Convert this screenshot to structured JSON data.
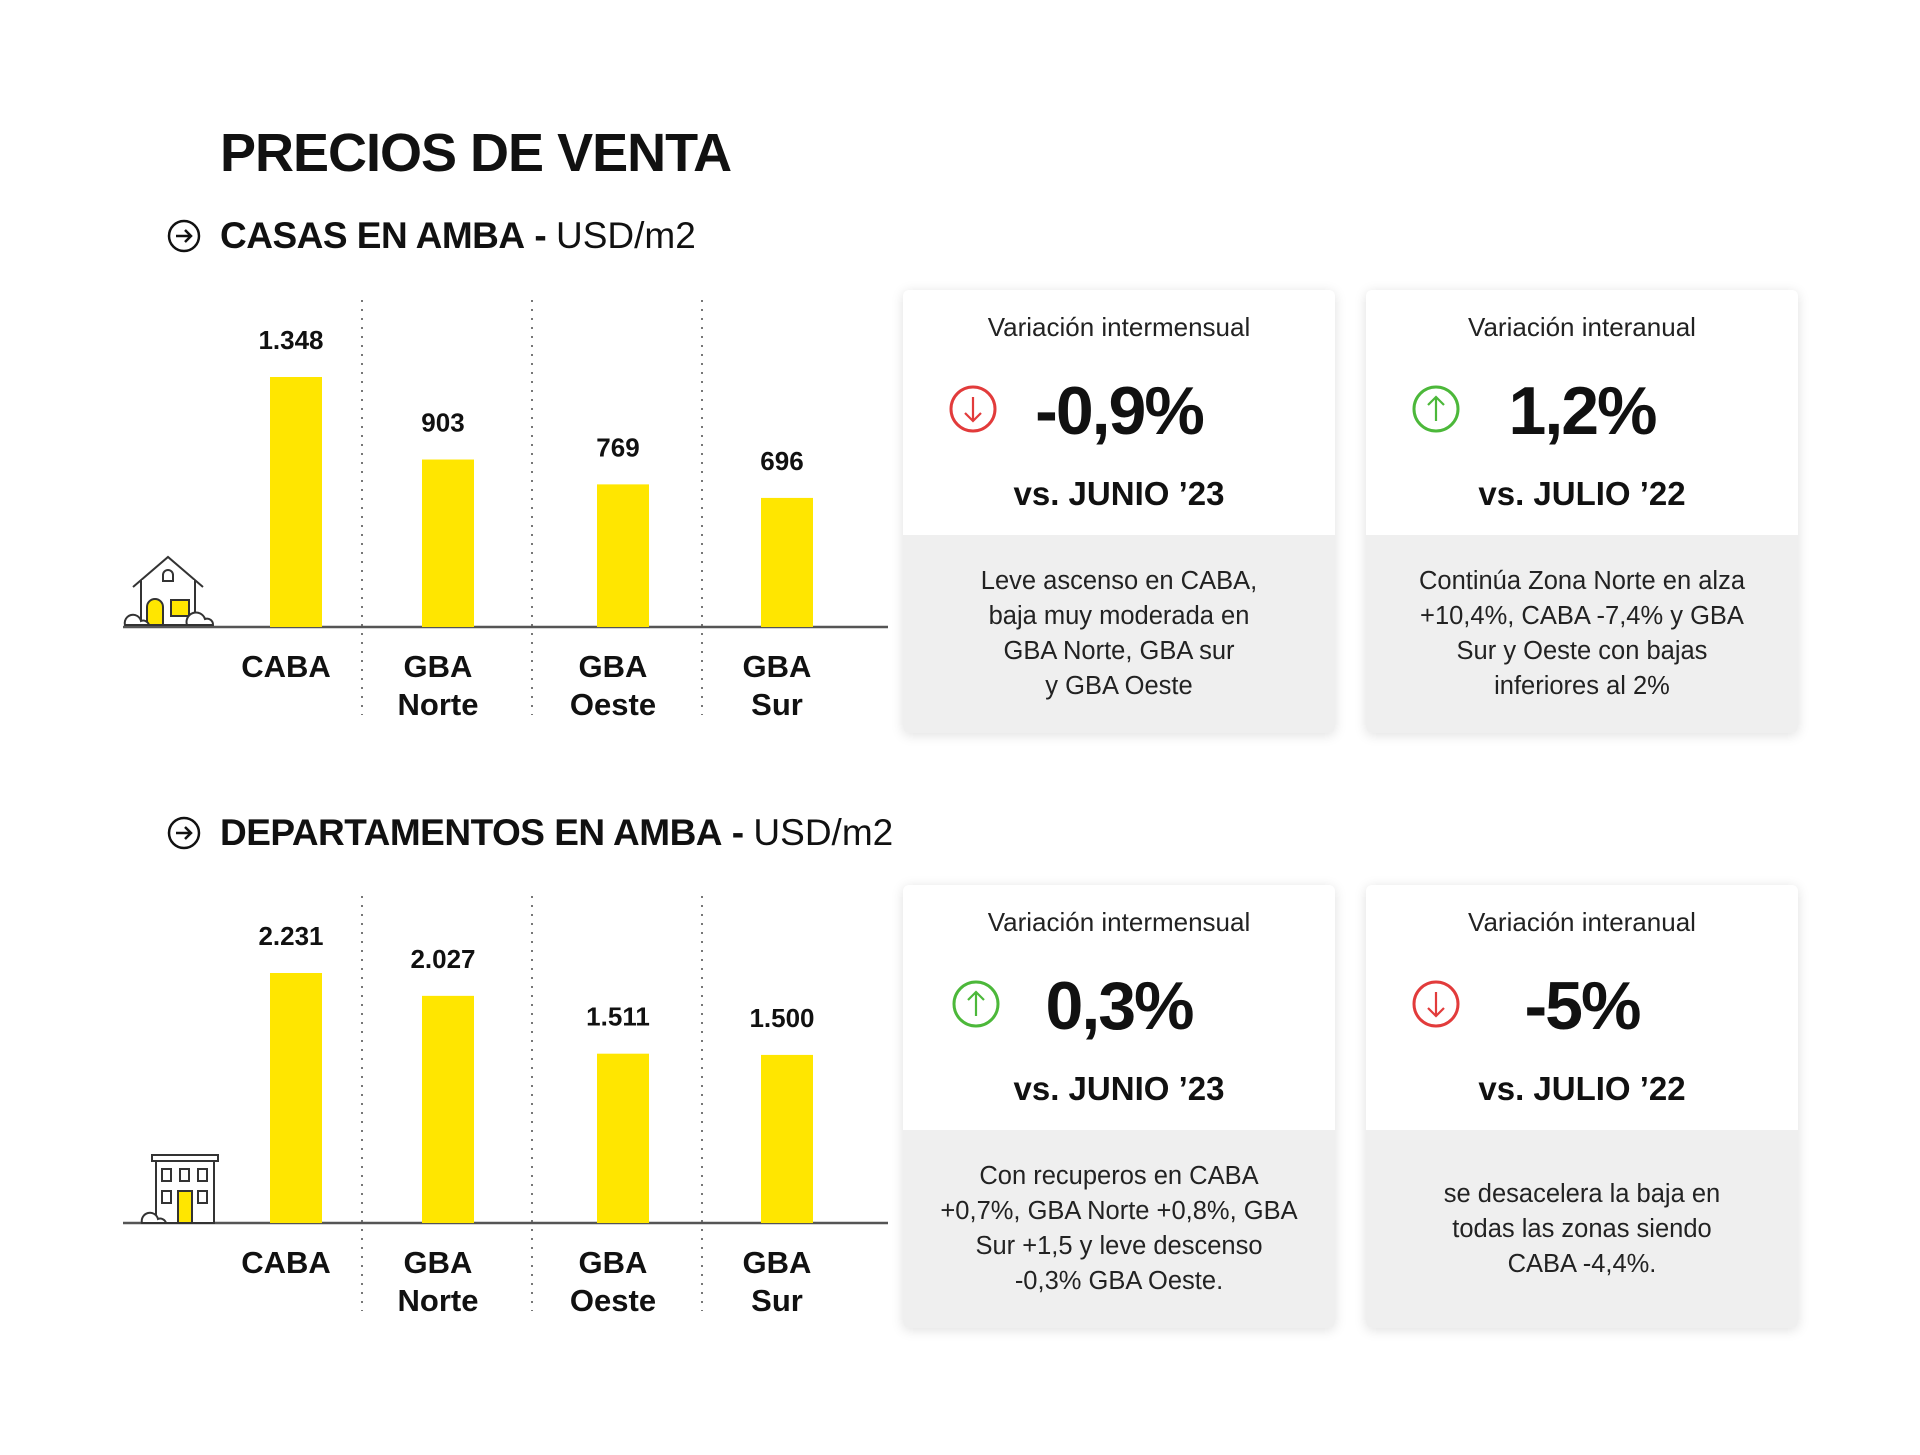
{
  "title": "PRECIOS DE VENTA",
  "colors": {
    "bar": "#FFE600",
    "down": "#E23B3B",
    "up": "#4CB83A"
  },
  "sections": [
    {
      "heading": "CASAS EN AMBA",
      "separator": " - ",
      "unit": "USD/m2",
      "icon": "house-icon",
      "cards": [
        {
          "header": "Variación intermensual",
          "value": "-0,9%",
          "direction": "down",
          "compare": "vs. JUNIO ’23",
          "note": "Leve ascenso en CABA,\nbaja muy moderada en\nGBA Norte, GBA sur\ny GBA Oeste"
        },
        {
          "header": "Variación interanual",
          "value": "1,2%",
          "direction": "up",
          "compare": "vs. JULIO ’22",
          "note": "Continúa Zona Norte en alza\n+10,4%, CABA -7,4% y GBA\nSur y Oeste con bajas\ninferiores al 2%"
        }
      ]
    },
    {
      "heading": "DEPARTAMENTOS EN AMBA",
      "separator": " - ",
      "unit": "USD/m2",
      "icon": "building-icon",
      "cards": [
        {
          "header": "Variación intermensual",
          "value": "0,3%",
          "direction": "up",
          "compare": "vs. JUNIO ’23",
          "note": "Con recuperos en CABA\n+0,7%, GBA Norte +0,8%, GBA\nSur +1,5 y leve descenso\n-0,3% GBA Oeste."
        },
        {
          "header": "Variación interanual",
          "value": "-5%",
          "direction": "down",
          "compare": "vs. JULIO ’22",
          "note": "se desacelera la baja en\ntodas las zonas siendo\nCABA -4,4%."
        }
      ]
    }
  ],
  "chart_data": [
    {
      "type": "bar",
      "title": "CASAS EN AMBA - USD/m2",
      "categories": [
        "CABA",
        "GBA Norte",
        "GBA Oeste",
        "GBA Sur"
      ],
      "category_lines": [
        [
          "CABA"
        ],
        [
          "GBA",
          "Norte"
        ],
        [
          "GBA",
          "Oeste"
        ],
        [
          "GBA",
          "Sur"
        ]
      ],
      "values": [
        1348,
        903,
        769,
        696
      ],
      "data_labels": [
        "1.348",
        "903",
        "769",
        "696"
      ],
      "grid": false
    },
    {
      "type": "bar",
      "title": "DEPARTAMENTOS EN AMBA - USD/m2",
      "categories": [
        "CABA",
        "GBA Norte",
        "GBA Oeste",
        "GBA Sur"
      ],
      "category_lines": [
        [
          "CABA"
        ],
        [
          "GBA",
          "Norte"
        ],
        [
          "GBA",
          "Oeste"
        ],
        [
          "GBA",
          "Sur"
        ]
      ],
      "values": [
        2231,
        2027,
        1511,
        1500
      ],
      "data_labels": [
        "2.231",
        "2.027",
        "1.511",
        "1.500"
      ],
      "grid": false
    }
  ]
}
